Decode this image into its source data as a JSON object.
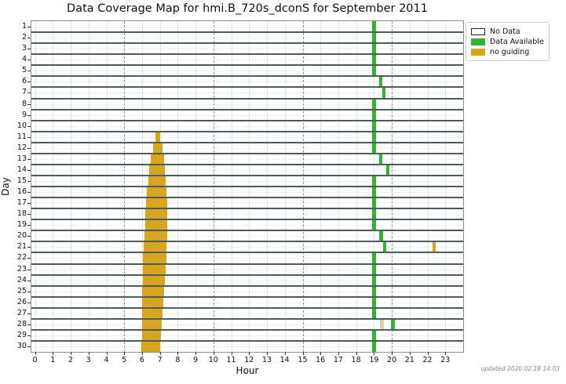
{
  "title": "Data Coverage Map for hmi.B_720s_dconS for September 2011",
  "updated_note": "updated 2020.02.18 14:03",
  "axes": {
    "xlabel": "Hour",
    "ylabel": "Day",
    "x_ticks": [
      "0",
      "1",
      "2",
      "3",
      "4",
      "5",
      "6",
      "7",
      "8",
      "9",
      "10",
      "11",
      "12",
      "13",
      "14",
      "15",
      "16",
      "17",
      "18",
      "19",
      "20",
      "21",
      "22",
      "23"
    ],
    "y_ticks": [
      "1",
      "2",
      "3",
      "4",
      "5",
      "6",
      "7",
      "8",
      "9",
      "10",
      "11",
      "12",
      "13",
      "14",
      "15",
      "16",
      "17",
      "18",
      "19",
      "20",
      "21",
      "22",
      "23",
      "24",
      "25",
      "26",
      "27",
      "28",
      "29",
      "30"
    ]
  },
  "legend": {
    "items": [
      {
        "label": "No Data",
        "color": "#ffffff"
      },
      {
        "label": "Data Available",
        "color": "#32b432"
      },
      {
        "label": "no guiding",
        "color": "#d8a520"
      }
    ]
  },
  "chart_data": {
    "type": "heatmap",
    "title": "Data Coverage Map for hmi.B_720s_dconS for September 2011",
    "xlabel": "Hour",
    "ylabel": "Day",
    "xlim": [
      -0.2,
      24
    ],
    "days": 30,
    "x_major_gridlines": [
      5,
      10,
      15,
      20
    ],
    "background_status": "No Data",
    "colors": {
      "data_available": "#32b432",
      "no_guiding": "#d8a520",
      "no_guiding_muted": "#ded0a4"
    },
    "segments": [
      {
        "day": 1,
        "start_hour": 18.88,
        "end_hour": 19.1,
        "status": "data_available"
      },
      {
        "day": 2,
        "start_hour": 18.88,
        "end_hour": 19.1,
        "status": "data_available"
      },
      {
        "day": 3,
        "start_hour": 18.88,
        "end_hour": 19.1,
        "status": "data_available"
      },
      {
        "day": 4,
        "start_hour": 18.88,
        "end_hour": 19.1,
        "status": "data_available"
      },
      {
        "day": 5,
        "start_hour": 18.88,
        "end_hour": 19.1,
        "status": "data_available"
      },
      {
        "day": 6,
        "start_hour": 19.28,
        "end_hour": 19.47,
        "status": "data_available"
      },
      {
        "day": 7,
        "start_hour": 19.47,
        "end_hour": 19.66,
        "status": "data_available"
      },
      {
        "day": 8,
        "start_hour": 18.88,
        "end_hour": 19.1,
        "status": "data_available"
      },
      {
        "day": 9,
        "start_hour": 18.88,
        "end_hour": 19.1,
        "status": "data_available"
      },
      {
        "day": 10,
        "start_hour": 18.88,
        "end_hour": 19.1,
        "status": "data_available"
      },
      {
        "day": 11,
        "start_hour": 18.88,
        "end_hour": 19.1,
        "status": "data_available"
      },
      {
        "day": 12,
        "start_hour": 18.88,
        "end_hour": 19.1,
        "status": "data_available"
      },
      {
        "day": 13,
        "start_hour": 19.28,
        "end_hour": 19.48,
        "status": "data_available"
      },
      {
        "day": 14,
        "start_hour": 19.68,
        "end_hour": 19.88,
        "status": "data_available"
      },
      {
        "day": 15,
        "start_hour": 18.88,
        "end_hour": 19.1,
        "status": "data_available"
      },
      {
        "day": 16,
        "start_hour": 18.88,
        "end_hour": 19.1,
        "status": "data_available"
      },
      {
        "day": 17,
        "start_hour": 18.88,
        "end_hour": 19.1,
        "status": "data_available"
      },
      {
        "day": 18,
        "start_hour": 18.88,
        "end_hour": 19.1,
        "status": "data_available"
      },
      {
        "day": 19,
        "start_hour": 18.88,
        "end_hour": 19.1,
        "status": "data_available"
      },
      {
        "day": 20,
        "start_hour": 19.3,
        "end_hour": 19.5,
        "status": "data_available"
      },
      {
        "day": 21,
        "start_hour": 19.5,
        "end_hour": 19.7,
        "status": "data_available"
      },
      {
        "day": 22,
        "start_hour": 18.88,
        "end_hour": 19.1,
        "status": "data_available"
      },
      {
        "day": 23,
        "start_hour": 18.88,
        "end_hour": 19.1,
        "status": "data_available"
      },
      {
        "day": 24,
        "start_hour": 18.88,
        "end_hour": 19.1,
        "status": "data_available"
      },
      {
        "day": 25,
        "start_hour": 18.88,
        "end_hour": 19.1,
        "status": "data_available"
      },
      {
        "day": 26,
        "start_hour": 18.88,
        "end_hour": 19.1,
        "status": "data_available"
      },
      {
        "day": 27,
        "start_hour": 18.88,
        "end_hour": 19.1,
        "status": "data_available"
      },
      {
        "day": 28,
        "start_hour": 19.95,
        "end_hour": 20.15,
        "status": "data_available"
      },
      {
        "day": 29,
        "start_hour": 18.88,
        "end_hour": 19.1,
        "status": "data_available"
      },
      {
        "day": 30,
        "start_hour": 18.88,
        "end_hour": 19.1,
        "status": "data_available"
      },
      {
        "day": 11,
        "start_hour": 6.76,
        "end_hour": 7.03,
        "status": "no_guiding"
      },
      {
        "day": 12,
        "start_hour": 6.6,
        "end_hour": 7.16,
        "status": "no_guiding"
      },
      {
        "day": 13,
        "start_hour": 6.5,
        "end_hour": 7.24,
        "status": "no_guiding"
      },
      {
        "day": 14,
        "start_hour": 6.41,
        "end_hour": 7.29,
        "status": "no_guiding"
      },
      {
        "day": 15,
        "start_hour": 6.34,
        "end_hour": 7.34,
        "status": "no_guiding"
      },
      {
        "day": 16,
        "start_hour": 6.28,
        "end_hour": 7.38,
        "status": "no_guiding"
      },
      {
        "day": 17,
        "start_hour": 6.24,
        "end_hour": 7.41,
        "status": "no_guiding"
      },
      {
        "day": 18,
        "start_hour": 6.19,
        "end_hour": 7.43,
        "status": "no_guiding"
      },
      {
        "day": 19,
        "start_hour": 6.16,
        "end_hour": 7.43,
        "status": "no_guiding"
      },
      {
        "day": 20,
        "start_hour": 6.12,
        "end_hour": 7.41,
        "status": "no_guiding"
      },
      {
        "day": 21,
        "start_hour": 6.09,
        "end_hour": 7.38,
        "status": "no_guiding"
      },
      {
        "day": 21,
        "start_hour": 22.28,
        "end_hour": 22.45,
        "status": "no_guiding"
      },
      {
        "day": 22,
        "start_hour": 6.06,
        "end_hour": 7.35,
        "status": "no_guiding"
      },
      {
        "day": 23,
        "start_hour": 6.04,
        "end_hour": 7.31,
        "status": "no_guiding"
      },
      {
        "day": 24,
        "start_hour": 6.03,
        "end_hour": 7.26,
        "status": "no_guiding"
      },
      {
        "day": 25,
        "start_hour": 6.01,
        "end_hour": 7.22,
        "status": "no_guiding"
      },
      {
        "day": 26,
        "start_hour": 6.0,
        "end_hour": 7.18,
        "status": "no_guiding"
      },
      {
        "day": 27,
        "start_hour": 5.99,
        "end_hour": 7.13,
        "status": "no_guiding"
      },
      {
        "day": 28,
        "start_hour": 5.99,
        "end_hour": 7.09,
        "status": "no_guiding"
      },
      {
        "day": 28,
        "start_hour": 19.35,
        "end_hour": 19.55,
        "status": "no_guiding",
        "muted": true
      },
      {
        "day": 29,
        "start_hour": 5.99,
        "end_hour": 7.04,
        "status": "no_guiding"
      },
      {
        "day": 30,
        "start_hour": 5.97,
        "end_hour": 7.0,
        "status": "no_guiding"
      }
    ]
  }
}
